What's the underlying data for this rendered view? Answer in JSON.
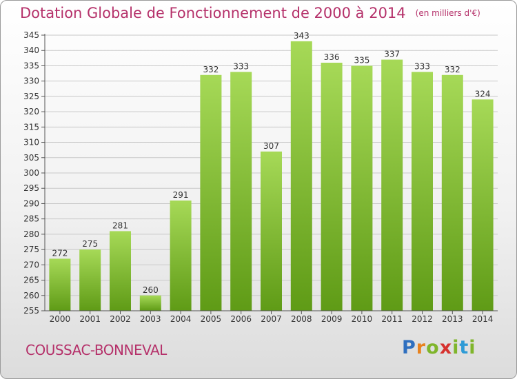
{
  "header": {
    "title": "Dotation Globale de Fonctionnement de 2000 à 2014",
    "unit": "(en milliers d'€)"
  },
  "footer": {
    "commune": "COUSSAC-BONNEVAL",
    "logo_letters": [
      "P",
      "r",
      "o",
      "x",
      "i",
      "t",
      "i"
    ],
    "logo_colors": [
      "#2f6fbf",
      "#e8821e",
      "#7fb52b",
      "#d6322f",
      "#7fb52b",
      "#2f9bd6",
      "#7fb52b"
    ]
  },
  "colors": {
    "bar_light": "#a6d957",
    "bar_dark": "#5f9b16",
    "grid": "#c8c8c8",
    "axis": "#555555",
    "text": "#333333"
  },
  "chart_data": {
    "type": "bar",
    "categories": [
      "2000",
      "2001",
      "2002",
      "2003",
      "2004",
      "2005",
      "2006",
      "2007",
      "2008",
      "2009",
      "2010",
      "2011",
      "2012",
      "2013",
      "2014"
    ],
    "values": [
      272,
      275,
      281,
      260,
      291,
      332,
      333,
      307,
      343,
      336,
      335,
      337,
      333,
      332,
      324
    ],
    "title": "Dotation Globale de Fonctionnement de 2000 à 2014",
    "ylim": [
      255,
      345
    ],
    "ytick_step": 5,
    "grid": true,
    "data_labels": true
  }
}
